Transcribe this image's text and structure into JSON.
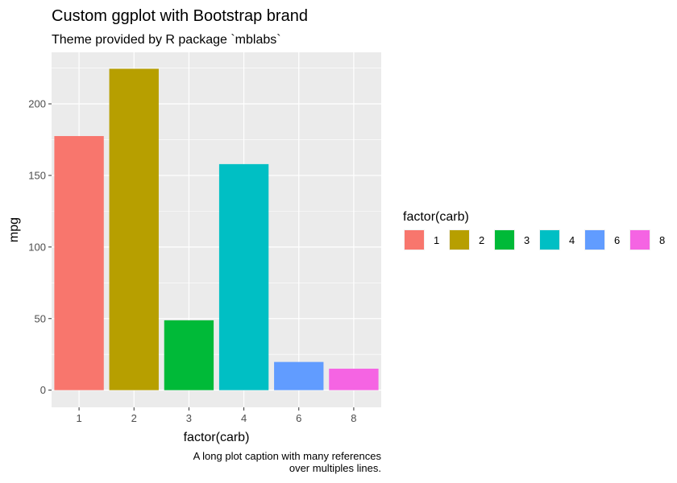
{
  "chart_data": {
    "type": "bar",
    "title": "Custom ggplot with Bootstrap brand",
    "subtitle": "Theme provided by R package `mblabs`",
    "xlabel": "factor(carb)",
    "ylabel": "mpg",
    "categories": [
      "1",
      "2",
      "3",
      "4",
      "6",
      "8"
    ],
    "values": [
      177.5,
      224.5,
      48.8,
      157.9,
      19.7,
      15.0
    ],
    "colors": [
      "#F8766D",
      "#B79F00",
      "#00BA38",
      "#00BFC4",
      "#619CFF",
      "#F564E3"
    ],
    "ylim": [
      -12,
      236
    ],
    "yticks": [
      0,
      50,
      100,
      150,
      200
    ],
    "ytick_labels": [
      "0",
      "50",
      "100",
      "150",
      "200"
    ],
    "grid": true,
    "legend": {
      "title": "factor(carb)",
      "position": "right",
      "entries": [
        "1",
        "2",
        "3",
        "4",
        "6",
        "8"
      ]
    },
    "caption": [
      "A long plot caption with many references",
      "over multiples lines."
    ]
  }
}
